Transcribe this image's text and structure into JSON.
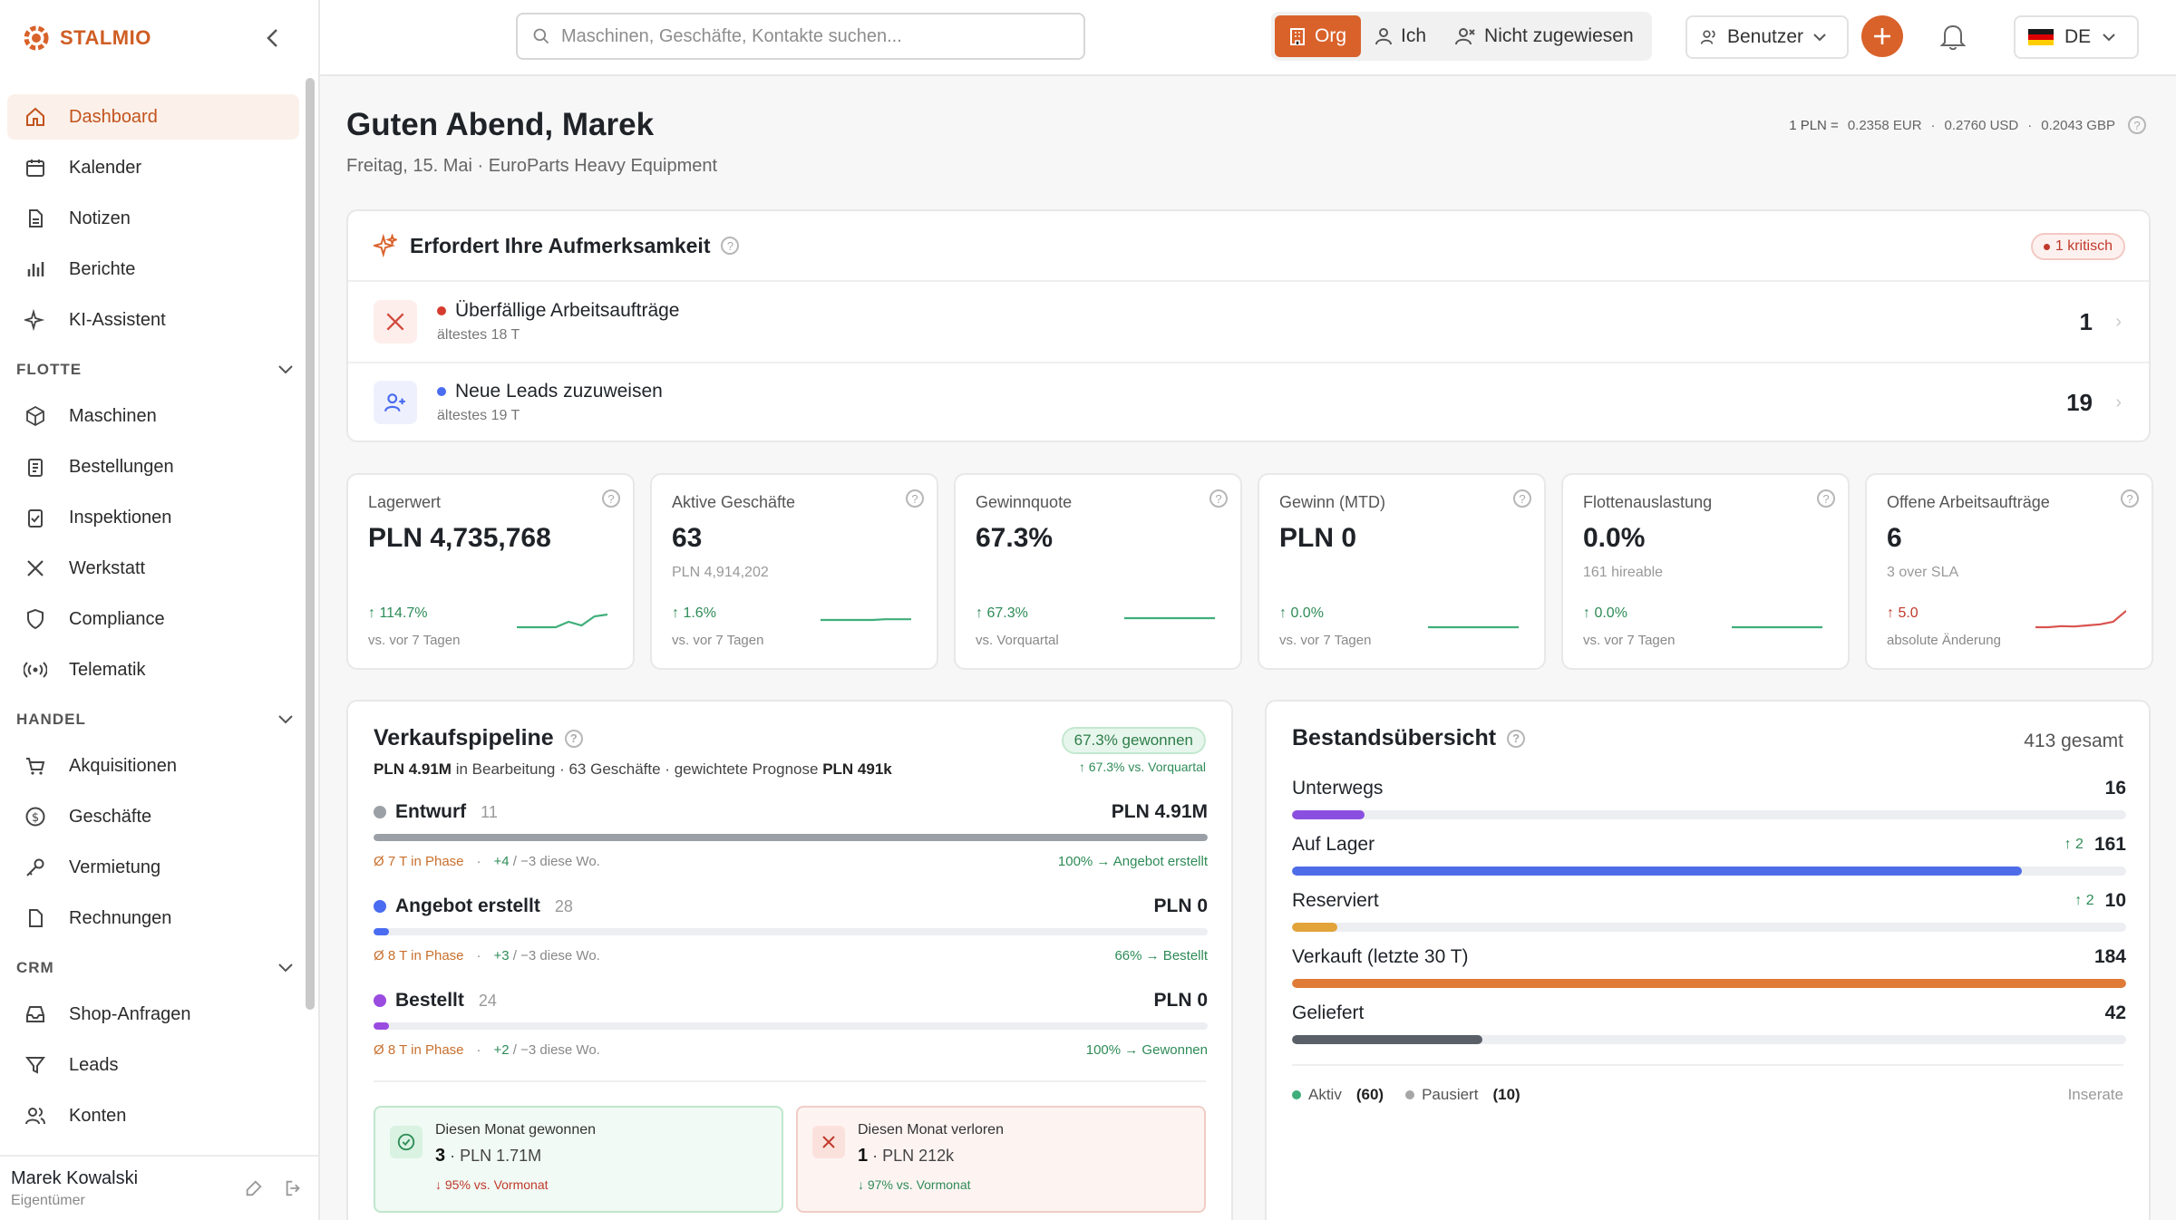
{
  "brand": {
    "name": "STALMIO",
    "accent": "#d9622b"
  },
  "sidebar": {
    "items": [
      {
        "label": "Dashboard",
        "icon": "home-icon",
        "active": true
      },
      {
        "label": "Kalender",
        "icon": "calendar-icon"
      },
      {
        "label": "Notizen",
        "icon": "notes-icon"
      },
      {
        "label": "Berichte",
        "icon": "chart-icon"
      },
      {
        "label": "KI-Assistent",
        "icon": "sparkle-icon"
      }
    ],
    "groups": [
      {
        "title": "FLOTTE",
        "items": [
          {
            "label": "Maschinen",
            "icon": "box-icon"
          },
          {
            "label": "Bestellungen",
            "icon": "clipboard-icon"
          },
          {
            "label": "Inspektionen",
            "icon": "checklist-icon"
          },
          {
            "label": "Werkstatt",
            "icon": "tools-icon"
          },
          {
            "label": "Compliance",
            "icon": "shield-icon"
          },
          {
            "label": "Telematik",
            "icon": "signal-icon"
          }
        ]
      },
      {
        "title": "HANDEL",
        "items": [
          {
            "label": "Akquisitionen",
            "icon": "cart-icon"
          },
          {
            "label": "Geschäfte",
            "icon": "dollar-icon"
          },
          {
            "label": "Vermietung",
            "icon": "key-icon"
          },
          {
            "label": "Rechnungen",
            "icon": "invoice-icon"
          }
        ]
      },
      {
        "title": "CRM",
        "items": [
          {
            "label": "Shop-Anfragen",
            "icon": "inbox-icon"
          },
          {
            "label": "Leads",
            "icon": "filter-icon"
          },
          {
            "label": "Konten",
            "icon": "users-icon"
          }
        ]
      }
    ],
    "user": {
      "name": "Marek Kowalski",
      "role": "Eigentümer"
    }
  },
  "topbar": {
    "search_placeholder": "Maschinen, Geschäfte, Kontakte suchen...",
    "scope": {
      "org": "Org",
      "me": "Ich",
      "unassigned": "Nicht zugewiesen"
    },
    "users_label": "Benutzer",
    "lang": "DE"
  },
  "header": {
    "greeting": "Guten Abend, Marek",
    "subtitle": "Freitag, 15. Mai · EuroParts Heavy Equipment",
    "fx": {
      "prefix": "1 PLN =",
      "eur": "0.2358 EUR",
      "usd": "0.2760 USD",
      "gbp": "0.2043 GBP"
    }
  },
  "attention": {
    "title": "Erfordert Ihre Aufmerksamkeit",
    "badge": "1 kritisch",
    "rows": [
      {
        "label": "Überfällige Arbeitsaufträge",
        "sub": "ältestes 18 T",
        "count": "1",
        "dot": "#d63b2f"
      },
      {
        "label": "Neue Leads zuzuweisen",
        "sub": "ältestes 19 T",
        "count": "19",
        "dot": "#4a6cf0"
      }
    ]
  },
  "kpis": [
    {
      "label": "Lagerwert",
      "value": "PLN 4,735,768",
      "sub": "",
      "delta": "↑ 114.7%",
      "note": "vs. vor 7 Tagen",
      "trend": [
        0.3,
        0.3,
        0.3,
        0.3,
        0.45,
        0.35,
        0.6,
        0.65
      ],
      "color": "#3fae7a"
    },
    {
      "label": "Aktive Geschäfte",
      "value": "63",
      "sub": "PLN 4,914,202",
      "delta": "↑ 1.6%",
      "note": "vs. vor 7 Tagen",
      "trend": [
        0.5,
        0.5,
        0.5,
        0.5,
        0.5,
        0.52,
        0.52,
        0.52
      ],
      "color": "#3fae7a"
    },
    {
      "label": "Gewinnquote",
      "value": "67.3%",
      "sub": "",
      "delta": "↑ 67.3%",
      "note": "vs. Vorquartal",
      "trend": [
        0.55,
        0.55,
        0.55,
        0.55,
        0.55,
        0.55,
        0.55,
        0.55
      ],
      "color": "#3fae7a"
    },
    {
      "label": "Gewinn (MTD)",
      "value": "PLN 0",
      "sub": "",
      "delta": "↑ 0.0%",
      "note": "vs. vor 7 Tagen",
      "trend": [
        0.3,
        0.3,
        0.3,
        0.3,
        0.3,
        0.3,
        0.3,
        0.3
      ],
      "color": "#3fae7a"
    },
    {
      "label": "Flottenauslastung",
      "value": "0.0%",
      "sub": "161 hireable",
      "delta": "↑ 0.0%",
      "note": "vs. vor 7 Tagen",
      "trend": [
        0.3,
        0.3,
        0.3,
        0.3,
        0.3,
        0.3,
        0.3,
        0.3
      ],
      "color": "#3fae7a"
    },
    {
      "label": "Offene Arbeitsaufträge",
      "value": "6",
      "sub": "3 over SLA",
      "delta": "↑ 5.0",
      "note": "absolute Änderung",
      "trend": [
        0.3,
        0.3,
        0.33,
        0.32,
        0.35,
        0.38,
        0.45,
        0.75
      ],
      "color": "#d9534f",
      "negative": true
    }
  ],
  "pipeline": {
    "title": "Verkaufspipeline",
    "summary": {
      "amount": "PLN 4.91M",
      "in_progress": "in Bearbeitung · 63 Geschäfte · gewichtete Prognose",
      "forecast": "PLN 491k"
    },
    "won_pill": "67.3% gewonnen",
    "won_note": "↑ 67.3% vs. Vorquartal",
    "stages": [
      {
        "name": "Entwurf",
        "count": "11",
        "value": "PLN 4.91M",
        "fill": 1.0,
        "color": "#9aa0a6",
        "time": "Ø 7 T in Phase",
        "plus": "+4",
        "minus": "−3 diese Wo.",
        "conv": "100% → Angebot erstellt"
      },
      {
        "name": "Angebot erstellt",
        "count": "28",
        "value": "PLN 0",
        "fill": 0.018,
        "color": "#4a6cf0",
        "time": "Ø 8 T in Phase",
        "plus": "+3",
        "minus": "−3 diese Wo.",
        "conv": "66% → Bestellt"
      },
      {
        "name": "Bestellt",
        "count": "24",
        "value": "PLN 0",
        "fill": 0.018,
        "color": "#9a4be0",
        "time": "Ø 8 T in Phase",
        "plus": "+2",
        "minus": "−3 diese Wo.",
        "conv": "100% → Gewonnen"
      }
    ],
    "won": {
      "label": "Diesen Monat gewonnen",
      "count": "3",
      "amount": "· PLN 1.71M",
      "delta": "↓ 95% vs. Vormonat"
    },
    "lost": {
      "label": "Diesen Monat verloren",
      "count": "1",
      "amount": "· PLN 212k",
      "delta": "↓ 97% vs. Vormonat"
    }
  },
  "inventory": {
    "title": "Bestandsübersicht",
    "total": "413 gesamt",
    "rows": [
      {
        "label": "Unterwegs",
        "value": "16",
        "up": "",
        "fill": 0.087,
        "color": "#8b4fe0"
      },
      {
        "label": "Auf Lager",
        "value": "161",
        "up": "↑ 2",
        "fill": 0.875,
        "color": "#4f6ce8"
      },
      {
        "label": "Reserviert",
        "value": "10",
        "up": "↑ 2",
        "fill": 0.054,
        "color": "#e2a33a"
      },
      {
        "label": "Verkauft (letzte 30 T)",
        "value": "184",
        "up": "",
        "fill": 1.0,
        "color": "#e07b37"
      },
      {
        "label": "Geliefert",
        "value": "42",
        "up": "",
        "fill": 0.228,
        "color": "#5a6068"
      }
    ],
    "legend": {
      "active_label": "Aktiv",
      "active_count": "(60)",
      "paused_label": "Pausiert",
      "paused_count": "(10)",
      "listings": "Inserate"
    }
  }
}
